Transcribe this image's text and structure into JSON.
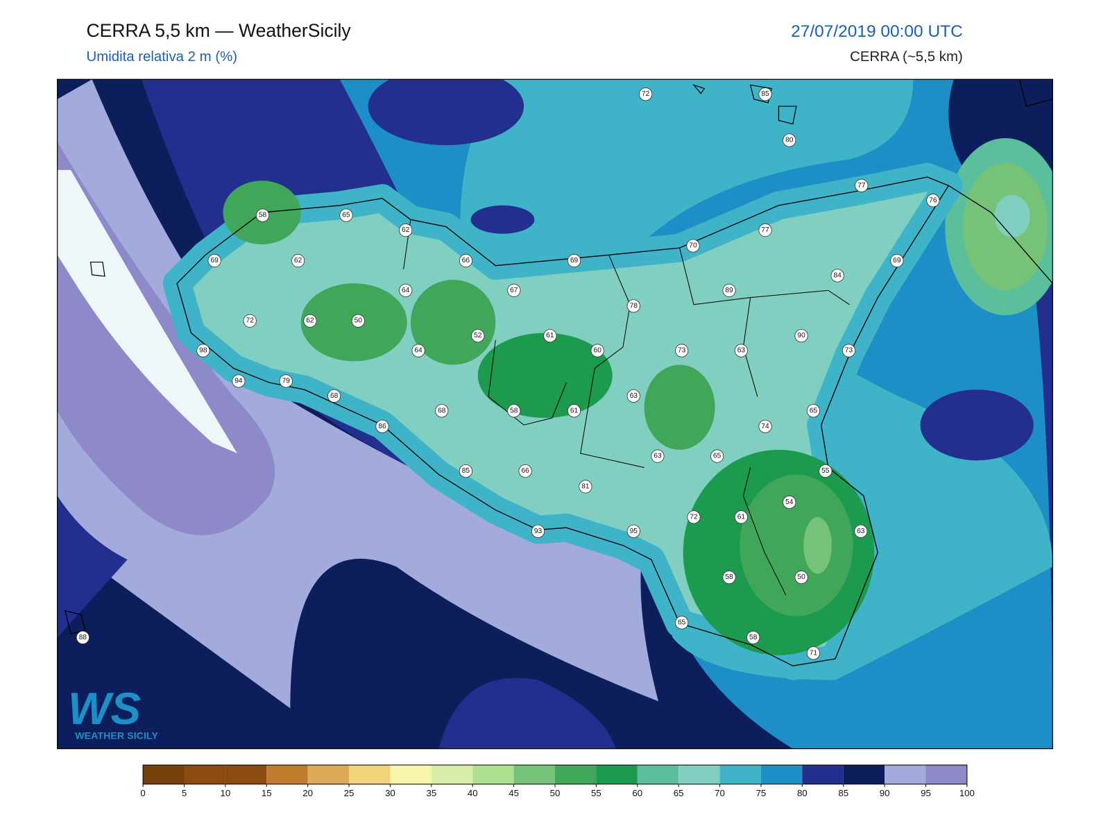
{
  "header": {
    "title": "CERRA 5,5 km — WeatherSicily",
    "subtitle": "Umidita relativa 2 m (%)",
    "datetime": "27/07/2019 00:00 UTC",
    "model": "CERRA (~5,5 km)"
  },
  "station_values": [
    72,
    85,
    80,
    77,
    76,
    58,
    65,
    62,
    77,
    70,
    69,
    62,
    66,
    69,
    69,
    84,
    64,
    67,
    89,
    78,
    72,
    62,
    50,
    90,
    52,
    61,
    98,
    64,
    60,
    73,
    63,
    73,
    94,
    79,
    68,
    63,
    68,
    58,
    61,
    65,
    74,
    86,
    63,
    65,
    85,
    66,
    55,
    81,
    54,
    72,
    61,
    63,
    93,
    95,
    58,
    50,
    65,
    58,
    71,
    88
  ],
  "colorbar": {
    "ticks": [
      0,
      5,
      10,
      15,
      20,
      25,
      30,
      35,
      40,
      45,
      50,
      55,
      60,
      65,
      70,
      75,
      80,
      85,
      90,
      95,
      100
    ],
    "colors": [
      "#76400b",
      "#8a4a10",
      "#8a4a10",
      "#c07c2c",
      "#dcaa58",
      "#f0d47c",
      "#f8f6aa",
      "#d8eea8",
      "#ade08f",
      "#75c278",
      "#3fa65a",
      "#1c9a4e",
      "#5cbf9c",
      "#80cfc0",
      "#3fb3c8",
      "#1e8fc6",
      "#232f8e",
      "#0c1f5c",
      "#a3aadc",
      "#8e8ac9"
    ]
  },
  "logo": {
    "mark": "WS",
    "name": "WEATHER SICILY"
  }
}
